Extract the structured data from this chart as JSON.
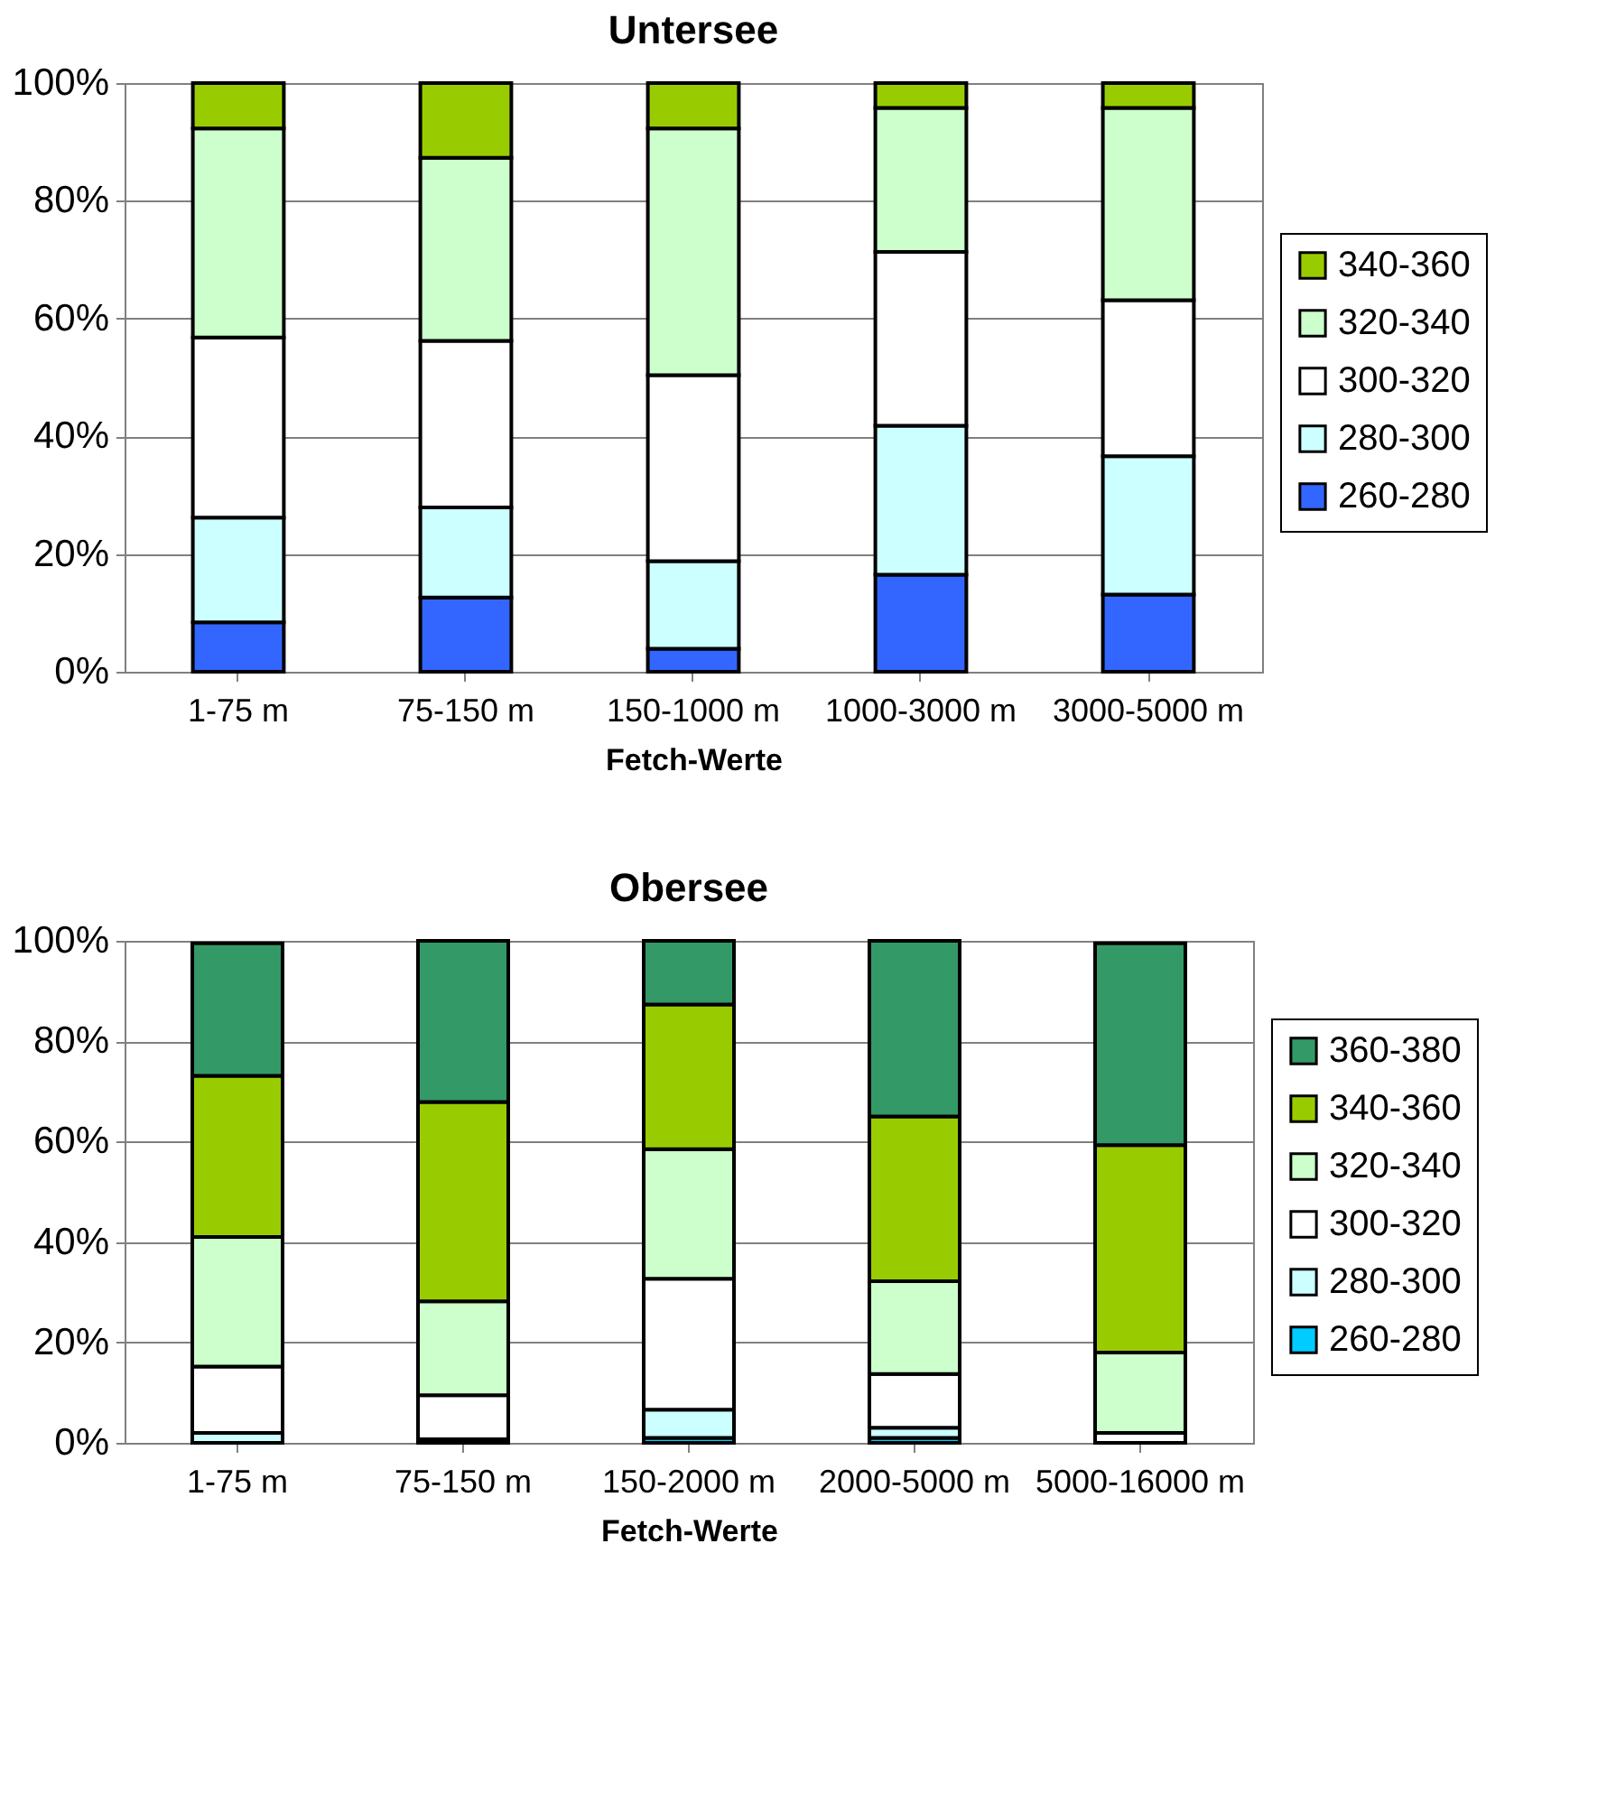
{
  "chart_data": [
    {
      "type": "bar",
      "title": "Untersee",
      "xlabel": "Fetch-Werte",
      "stacked": true,
      "grid": "y",
      "legend": "right",
      "categories": [
        "1-75 m",
        "75-150 m",
        "150-1000 m",
        "1000-3000 m",
        "3000-5000 m"
      ],
      "ylim": [
        0,
        100
      ],
      "yticks": [
        {
          "value": 0,
          "label": "0%"
        },
        {
          "value": 20,
          "label": "20%"
        },
        {
          "value": 40,
          "label": "40%"
        },
        {
          "value": 60,
          "label": "60%"
        },
        {
          "value": 80,
          "label": "80%"
        },
        {
          "value": 100,
          "label": "100%"
        }
      ],
      "series": [
        {
          "name": "260-280",
          "color": "#3366ff",
          "values": [
            8.4,
            12.6,
            3.9,
            16.5,
            13.1
          ]
        },
        {
          "name": "280-300",
          "color": "#ccffff",
          "values": [
            17.8,
            15.3,
            14.9,
            25.3,
            23.5
          ]
        },
        {
          "name": "300-320",
          "color": "#ffffff",
          "values": [
            30.6,
            28.3,
            31.6,
            29.5,
            26.5
          ]
        },
        {
          "name": "320-340",
          "color": "#ccffcc",
          "values": [
            35.5,
            31.1,
            41.9,
            24.5,
            32.7
          ]
        },
        {
          "name": "340-360",
          "color": "#99cc00",
          "values": [
            7.7,
            12.7,
            7.7,
            4.2,
            4.2
          ]
        }
      ]
    },
    {
      "type": "bar",
      "title": "Obersee",
      "xlabel": "Fetch-Werte",
      "stacked": true,
      "grid": "y",
      "legend": "right",
      "categories": [
        "1-75 m",
        "75-150 m",
        "150-2000 m",
        "2000-5000 m",
        "5000-16000 m"
      ],
      "ylim": [
        0,
        100
      ],
      "yticks": [
        {
          "value": 0,
          "label": "0%"
        },
        {
          "value": 20,
          "label": "20%"
        },
        {
          "value": 40,
          "label": "40%"
        },
        {
          "value": 60,
          "label": "60%"
        },
        {
          "value": 80,
          "label": "80%"
        },
        {
          "value": 100,
          "label": "100%"
        }
      ],
      "series": [
        {
          "name": "260-280",
          "color": "#00ccff",
          "values": [
            null,
            0,
            1,
            1,
            0
          ]
        },
        {
          "name": "280-300",
          "color": "#ccffff",
          "values": [
            2,
            0.7,
            5.6,
            2,
            null
          ]
        },
        {
          "name": "300-320",
          "color": "#ffffff",
          "values": [
            13.2,
            8.8,
            26.1,
            10.7,
            2
          ]
        },
        {
          "name": "320-340",
          "color": "#ccffcc",
          "values": [
            25.8,
            18.7,
            25.8,
            18.5,
            16
          ]
        },
        {
          "name": "340-360",
          "color": "#99cc00",
          "values": [
            32.1,
            39.7,
            28.8,
            32.8,
            41.3
          ]
        },
        {
          "name": "360-380",
          "color": "#339966",
          "values": [
            26.4,
            32.1,
            12.7,
            35,
            40.2
          ]
        }
      ]
    }
  ]
}
